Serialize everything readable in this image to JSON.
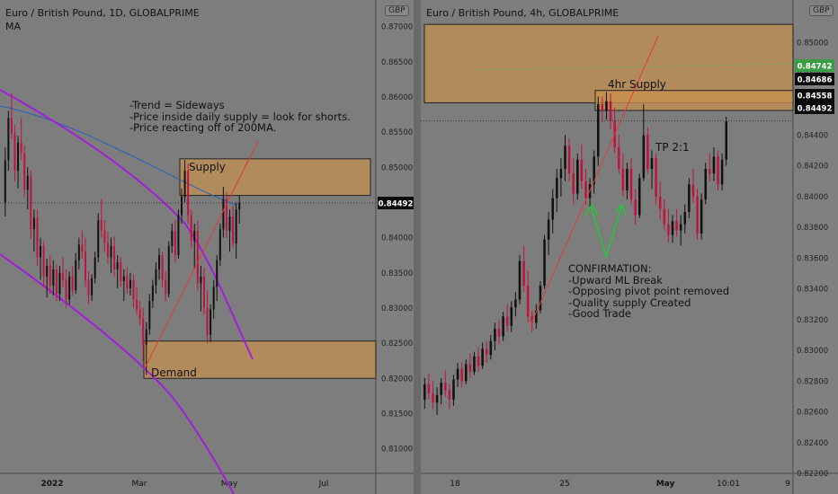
{
  "chart_data": [
    {
      "type": "candlestick",
      "title": "Euro / British Pound, 1D, GLOBALPRIME",
      "indicator": "MA",
      "currency_badge": "GBP",
      "y_ticks": [
        "0.87000",
        "0.86500",
        "0.86000",
        "0.85500",
        "0.85000",
        "0.84500",
        "0.84000",
        "0.83500",
        "0.83000",
        "0.82500",
        "0.82000",
        "0.81500",
        "0.81000"
      ],
      "ylim": [
        0.8065,
        0.8725
      ],
      "x_ticks": [
        "2022",
        "Mar",
        "May",
        "Jul"
      ],
      "current_price": "0.84492",
      "zones": [
        {
          "label": "Supply",
          "from": 0.846,
          "to": 0.8512
        },
        {
          "label": "Demand",
          "from": 0.82,
          "to": 0.8253
        }
      ],
      "annotation": "-Trend = Sideways\n-Price inside daily supply = look for shorts.\n-Price reacting off of 200MA.",
      "ohlc": [
        [
          0.845,
          0.8528,
          0.843,
          0.851
        ],
        [
          0.851,
          0.858,
          0.8495,
          0.857
        ],
        [
          0.857,
          0.8605,
          0.854,
          0.8548
        ],
        [
          0.8548,
          0.856,
          0.848,
          0.8495
        ],
        [
          0.8495,
          0.8545,
          0.847,
          0.8535
        ],
        [
          0.8535,
          0.857,
          0.851,
          0.852
        ],
        [
          0.852,
          0.8532,
          0.8458,
          0.8468
        ],
        [
          0.8468,
          0.85,
          0.844,
          0.8488
        ],
        [
          0.8488,
          0.8495,
          0.8398,
          0.8412
        ],
        [
          0.8412,
          0.844,
          0.838,
          0.8428
        ],
        [
          0.8428,
          0.844,
          0.836,
          0.8372
        ],
        [
          0.8372,
          0.84,
          0.834,
          0.8388
        ],
        [
          0.8388,
          0.8395,
          0.833,
          0.8345
        ],
        [
          0.8345,
          0.837,
          0.8315,
          0.836
        ],
        [
          0.836,
          0.8375,
          0.832,
          0.8332
        ],
        [
          0.8332,
          0.8368,
          0.8318,
          0.8355
        ],
        [
          0.8355,
          0.8362,
          0.831,
          0.832
        ],
        [
          0.832,
          0.836,
          0.831,
          0.835
        ],
        [
          0.835,
          0.8372,
          0.833,
          0.834
        ],
        [
          0.834,
          0.8355,
          0.83,
          0.8312
        ],
        [
          0.8312,
          0.8352,
          0.8305,
          0.8345
        ],
        [
          0.8345,
          0.836,
          0.8318,
          0.8325
        ],
        [
          0.8325,
          0.8378,
          0.832,
          0.8368
        ],
        [
          0.8368,
          0.84,
          0.8355,
          0.839
        ],
        [
          0.839,
          0.841,
          0.837,
          0.838
        ],
        [
          0.838,
          0.84,
          0.833,
          0.834
        ],
        [
          0.834,
          0.8352,
          0.8305,
          0.8318
        ],
        [
          0.8318,
          0.8348,
          0.831,
          0.8342
        ],
        [
          0.8342,
          0.838,
          0.8335,
          0.8372
        ],
        [
          0.8372,
          0.8435,
          0.8365,
          0.8425
        ],
        [
          0.8425,
          0.8455,
          0.84,
          0.841
        ],
        [
          0.841,
          0.8425,
          0.838,
          0.8392
        ],
        [
          0.8392,
          0.8408,
          0.8362,
          0.8372
        ],
        [
          0.8372,
          0.84,
          0.835,
          0.8388
        ],
        [
          0.8388,
          0.8402,
          0.8345,
          0.8355
        ],
        [
          0.8355,
          0.8375,
          0.8328,
          0.8365
        ],
        [
          0.8365,
          0.8372,
          0.833,
          0.8338
        ],
        [
          0.8338,
          0.8355,
          0.831,
          0.8345
        ],
        [
          0.8345,
          0.8358,
          0.832,
          0.8328
        ],
        [
          0.8328,
          0.835,
          0.8318,
          0.834
        ],
        [
          0.834,
          0.8348,
          0.83,
          0.8312
        ],
        [
          0.8312,
          0.833,
          0.829,
          0.8298
        ],
        [
          0.8298,
          0.831,
          0.8275,
          0.8285
        ],
        [
          0.8285,
          0.83,
          0.8225,
          0.8248
        ],
        [
          0.8248,
          0.828,
          0.8205,
          0.827
        ],
        [
          0.827,
          0.832,
          0.8262,
          0.831
        ],
        [
          0.831,
          0.834,
          0.83,
          0.8332
        ],
        [
          0.8332,
          0.8365,
          0.832,
          0.8355
        ],
        [
          0.8355,
          0.8385,
          0.834,
          0.8375
        ],
        [
          0.8375,
          0.838,
          0.833,
          0.834
        ],
        [
          0.834,
          0.8352,
          0.831,
          0.832
        ],
        [
          0.832,
          0.8395,
          0.8315,
          0.8388
        ],
        [
          0.8388,
          0.842,
          0.8378,
          0.841
        ],
        [
          0.841,
          0.8425,
          0.8365,
          0.8375
        ],
        [
          0.8375,
          0.844,
          0.837,
          0.8432
        ],
        [
          0.8432,
          0.847,
          0.842,
          0.8458
        ],
        [
          0.8458,
          0.851,
          0.845,
          0.8495
        ],
        [
          0.8495,
          0.8505,
          0.842,
          0.8432
        ],
        [
          0.8432,
          0.844,
          0.8385,
          0.8395
        ],
        [
          0.8395,
          0.842,
          0.8355,
          0.841
        ],
        [
          0.841,
          0.8425,
          0.8325,
          0.8335
        ],
        [
          0.8335,
          0.836,
          0.8295,
          0.8345
        ],
        [
          0.8345,
          0.8358,
          0.829,
          0.83
        ],
        [
          0.83,
          0.8325,
          0.825,
          0.8262
        ],
        [
          0.8262,
          0.8305,
          0.8252,
          0.8298
        ],
        [
          0.8298,
          0.834,
          0.8285,
          0.833
        ],
        [
          0.833,
          0.8375,
          0.831,
          0.8368
        ],
        [
          0.8368,
          0.842,
          0.836,
          0.8412
        ],
        [
          0.8412,
          0.8472,
          0.84,
          0.8455
        ],
        [
          0.8455,
          0.8465,
          0.84,
          0.841
        ],
        [
          0.841,
          0.844,
          0.838,
          0.843
        ],
        [
          0.843,
          0.8445,
          0.8385,
          0.8392
        ],
        [
          0.8392,
          0.845,
          0.837,
          0.844
        ],
        [
          0.844,
          0.846,
          0.842,
          0.8449
        ]
      ]
    },
    {
      "type": "candlestick",
      "title": "Euro / British Pound, 4h, GLOBALPRIME",
      "currency_badge": "GBP",
      "y_ticks": [
        "0.85000",
        "0.84800",
        "0.84600",
        "0.84400",
        "0.84200",
        "0.84000",
        "0.83800",
        "0.83600",
        "0.83400",
        "0.83200",
        "0.83000",
        "0.82800",
        "0.82600",
        "0.82400",
        "0.82200"
      ],
      "ylim": [
        0.822,
        0.8522
      ],
      "x_ticks": [
        "18",
        "25",
        "May",
        "10:01",
        "9"
      ],
      "price_tags": [
        {
          "text": "0.84742",
          "role": "ma"
        },
        {
          "text": "0.84686",
          "role": "zone"
        },
        {
          "text": "0.84558",
          "role": "zone"
        },
        {
          "text": "0.84492",
          "role": "current"
        }
      ],
      "zones": [
        {
          "label": "",
          "from": 0.8461,
          "to": 0.8512
        },
        {
          "label": "4hr Supply",
          "from": 0.8456,
          "to": 0.8469
        }
      ],
      "tp_label": "TP 2:1",
      "annotation": "CONFIRMATION:\n-Upward ML Break\n-Opposing pivot point removed\n-Quality supply Created\n-Good Trade",
      "ohlc": [
        [
          0.8268,
          0.8282,
          0.8262,
          0.8278
        ],
        [
          0.8278,
          0.8285,
          0.8268,
          0.8272
        ],
        [
          0.8272,
          0.828,
          0.8262,
          0.8266
        ],
        [
          0.8266,
          0.8276,
          0.8258,
          0.8271
        ],
        [
          0.8271,
          0.8282,
          0.8265,
          0.8279
        ],
        [
          0.8279,
          0.8287,
          0.827,
          0.8274
        ],
        [
          0.8274,
          0.8278,
          0.8262,
          0.8268
        ],
        [
          0.8268,
          0.8284,
          0.8264,
          0.8281
        ],
        [
          0.8281,
          0.8292,
          0.8276,
          0.8288
        ],
        [
          0.8288,
          0.8292,
          0.8276,
          0.828
        ],
        [
          0.828,
          0.8294,
          0.8278,
          0.8291
        ],
        [
          0.8291,
          0.8298,
          0.8282,
          0.8286
        ],
        [
          0.8286,
          0.8299,
          0.8284,
          0.8296
        ],
        [
          0.8296,
          0.8302,
          0.8286,
          0.829
        ],
        [
          0.829,
          0.8305,
          0.8288,
          0.8301
        ],
        [
          0.8301,
          0.8306,
          0.8292,
          0.8297
        ],
        [
          0.8297,
          0.831,
          0.8294,
          0.8306
        ],
        [
          0.8306,
          0.8318,
          0.83,
          0.8314
        ],
        [
          0.8314,
          0.832,
          0.8304,
          0.8309
        ],
        [
          0.8309,
          0.8325,
          0.8306,
          0.8322
        ],
        [
          0.8322,
          0.833,
          0.8312,
          0.8316
        ],
        [
          0.8316,
          0.8332,
          0.8312,
          0.8328
        ],
        [
          0.8328,
          0.8338,
          0.8322,
          0.8333
        ],
        [
          0.8333,
          0.8362,
          0.833,
          0.8358
        ],
        [
          0.8358,
          0.8368,
          0.8338,
          0.8342
        ],
        [
          0.8342,
          0.8352,
          0.8318,
          0.8322
        ],
        [
          0.8322,
          0.8326,
          0.8312,
          0.8318
        ],
        [
          0.8318,
          0.833,
          0.8314,
          0.8326
        ],
        [
          0.8326,
          0.8345,
          0.8324,
          0.8342
        ],
        [
          0.8342,
          0.8375,
          0.834,
          0.8372
        ],
        [
          0.8372,
          0.839,
          0.8362,
          0.8385
        ],
        [
          0.8385,
          0.8405,
          0.8376,
          0.8399
        ],
        [
          0.8399,
          0.8418,
          0.839,
          0.8412
        ],
        [
          0.8412,
          0.8425,
          0.84,
          0.8418
        ],
        [
          0.8418,
          0.844,
          0.841,
          0.8433
        ],
        [
          0.8433,
          0.8438,
          0.841,
          0.8415
        ],
        [
          0.8415,
          0.8425,
          0.8395,
          0.8402
        ],
        [
          0.8402,
          0.8428,
          0.8398,
          0.8424
        ],
        [
          0.8424,
          0.8434,
          0.8405,
          0.841
        ],
        [
          0.841,
          0.8418,
          0.8395,
          0.8399
        ],
        [
          0.8399,
          0.8412,
          0.8392,
          0.8408
        ],
        [
          0.8408,
          0.843,
          0.8402,
          0.8426
        ],
        [
          0.8426,
          0.8465,
          0.842,
          0.846
        ],
        [
          0.846,
          0.8465,
          0.8448,
          0.8456
        ],
        [
          0.8456,
          0.8468,
          0.845,
          0.8462
        ],
        [
          0.8462,
          0.8467,
          0.8444,
          0.8449
        ],
        [
          0.8449,
          0.8458,
          0.8428,
          0.8432
        ],
        [
          0.8432,
          0.844,
          0.8415,
          0.8418
        ],
        [
          0.8418,
          0.8428,
          0.84,
          0.8404
        ],
        [
          0.8404,
          0.8422,
          0.8398,
          0.8418
        ],
        [
          0.8418,
          0.8425,
          0.8395,
          0.8398
        ],
        [
          0.8398,
          0.8405,
          0.8382,
          0.8388
        ],
        [
          0.8388,
          0.8415,
          0.8386,
          0.8412
        ],
        [
          0.8412,
          0.846,
          0.841,
          0.844
        ],
        [
          0.844,
          0.8445,
          0.8415,
          0.8418
        ],
        [
          0.8418,
          0.843,
          0.8405,
          0.8425
        ],
        [
          0.8425,
          0.8428,
          0.8395,
          0.84
        ],
        [
          0.84,
          0.841,
          0.8385,
          0.8392
        ],
        [
          0.8392,
          0.8398,
          0.8378,
          0.8382
        ],
        [
          0.8382,
          0.8392,
          0.837,
          0.8375
        ],
        [
          0.8375,
          0.8388,
          0.837,
          0.8384
        ],
        [
          0.8384,
          0.8392,
          0.8374,
          0.8378
        ],
        [
          0.8378,
          0.8388,
          0.8368,
          0.8382
        ],
        [
          0.8382,
          0.8395,
          0.8376,
          0.839
        ],
        [
          0.839,
          0.8412,
          0.8386,
          0.8408
        ],
        [
          0.8408,
          0.8418,
          0.8396,
          0.84
        ],
        [
          0.84,
          0.8405,
          0.8372,
          0.8376
        ],
        [
          0.8376,
          0.8402,
          0.8372,
          0.8398
        ],
        [
          0.8398,
          0.8422,
          0.8395,
          0.8418
        ],
        [
          0.8418,
          0.8428,
          0.841,
          0.8415
        ],
        [
          0.8415,
          0.8432,
          0.841,
          0.8426
        ],
        [
          0.8426,
          0.843,
          0.8404,
          0.8408
        ],
        [
          0.8408,
          0.8428,
          0.8404,
          0.8424
        ],
        [
          0.8424,
          0.8452,
          0.842,
          0.8449
        ]
      ]
    }
  ]
}
